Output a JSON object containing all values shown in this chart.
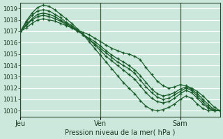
{
  "background_color": "#cce8dd",
  "plot_bg_color": "#cce8dd",
  "grid_color_v": "#e08080",
  "grid_color_h": "#ffffff",
  "line_color": "#1a5c2a",
  "marker": "+",
  "xlabel": "Pression niveau de la mer( hPa )",
  "xtick_labels": [
    "Jeu",
    "Ven",
    "Sam"
  ],
  "xtick_positions": [
    0,
    24,
    48
  ],
  "ylim": [
    1009.5,
    1019.5
  ],
  "yticks": [
    1010,
    1011,
    1012,
    1013,
    1014,
    1015,
    1016,
    1017,
    1018,
    1019
  ],
  "xlim": [
    0,
    60
  ],
  "vline_positions": [
    0,
    24,
    48
  ],
  "series": [
    [
      1017.0,
      1017.3,
      1017.7,
      1018.0,
      1018.1,
      1018.0,
      1017.9,
      1017.7,
      1017.5,
      1017.3,
      1017.1,
      1016.9,
      1016.7,
      1016.4,
      1016.1,
      1015.8,
      1015.5,
      1015.3,
      1015.1,
      1015.0,
      1014.8,
      1014.5,
      1013.8,
      1013.2,
      1012.6,
      1012.2,
      1012.0,
      1012.1,
      1012.3,
      1012.2,
      1012.0,
      1011.7,
      1011.3,
      1010.8,
      1010.3,
      1010.0
    ],
    [
      1017.0,
      1017.5,
      1018.0,
      1018.3,
      1018.4,
      1018.3,
      1018.1,
      1017.9,
      1017.6,
      1017.3,
      1017.0,
      1016.7,
      1016.4,
      1016.1,
      1015.7,
      1015.3,
      1014.9,
      1014.6,
      1014.3,
      1014.0,
      1013.6,
      1013.1,
      1012.5,
      1011.9,
      1011.5,
      1011.3,
      1011.4,
      1011.6,
      1011.9,
      1012.1,
      1011.9,
      1011.5,
      1011.0,
      1010.5,
      1010.1,
      1010.0
    ],
    [
      1017.0,
      1017.6,
      1018.1,
      1018.5,
      1018.6,
      1018.5,
      1018.3,
      1018.0,
      1017.7,
      1017.4,
      1017.1,
      1016.7,
      1016.3,
      1015.9,
      1015.5,
      1015.1,
      1014.7,
      1014.3,
      1014.0,
      1013.7,
      1013.3,
      1012.7,
      1012.1,
      1011.6,
      1011.2,
      1011.0,
      1011.1,
      1011.4,
      1011.7,
      1012.0,
      1011.8,
      1011.3,
      1010.8,
      1010.3,
      1010.05,
      1010.0
    ],
    [
      1017.0,
      1017.8,
      1018.4,
      1018.8,
      1018.9,
      1018.8,
      1018.5,
      1018.2,
      1017.8,
      1017.5,
      1017.1,
      1016.7,
      1016.3,
      1015.8,
      1015.3,
      1014.8,
      1014.4,
      1014.0,
      1013.6,
      1013.2,
      1012.8,
      1012.2,
      1011.6,
      1011.1,
      1010.8,
      1010.7,
      1010.8,
      1011.1,
      1011.5,
      1011.8,
      1011.6,
      1011.1,
      1010.6,
      1010.2,
      1010.0,
      1010.0
    ],
    [
      1017.0,
      1017.9,
      1018.6,
      1019.1,
      1019.3,
      1019.2,
      1018.9,
      1018.5,
      1018.1,
      1017.7,
      1017.2,
      1016.7,
      1016.1,
      1015.5,
      1014.9,
      1014.3,
      1013.7,
      1013.1,
      1012.5,
      1012.0,
      1011.5,
      1010.9,
      1010.4,
      1010.1,
      1010.0,
      1010.1,
      1010.3,
      1010.6,
      1011.0,
      1011.3,
      1011.1,
      1010.6,
      1010.2,
      1010.0,
      1010.0,
      1010.0
    ]
  ]
}
